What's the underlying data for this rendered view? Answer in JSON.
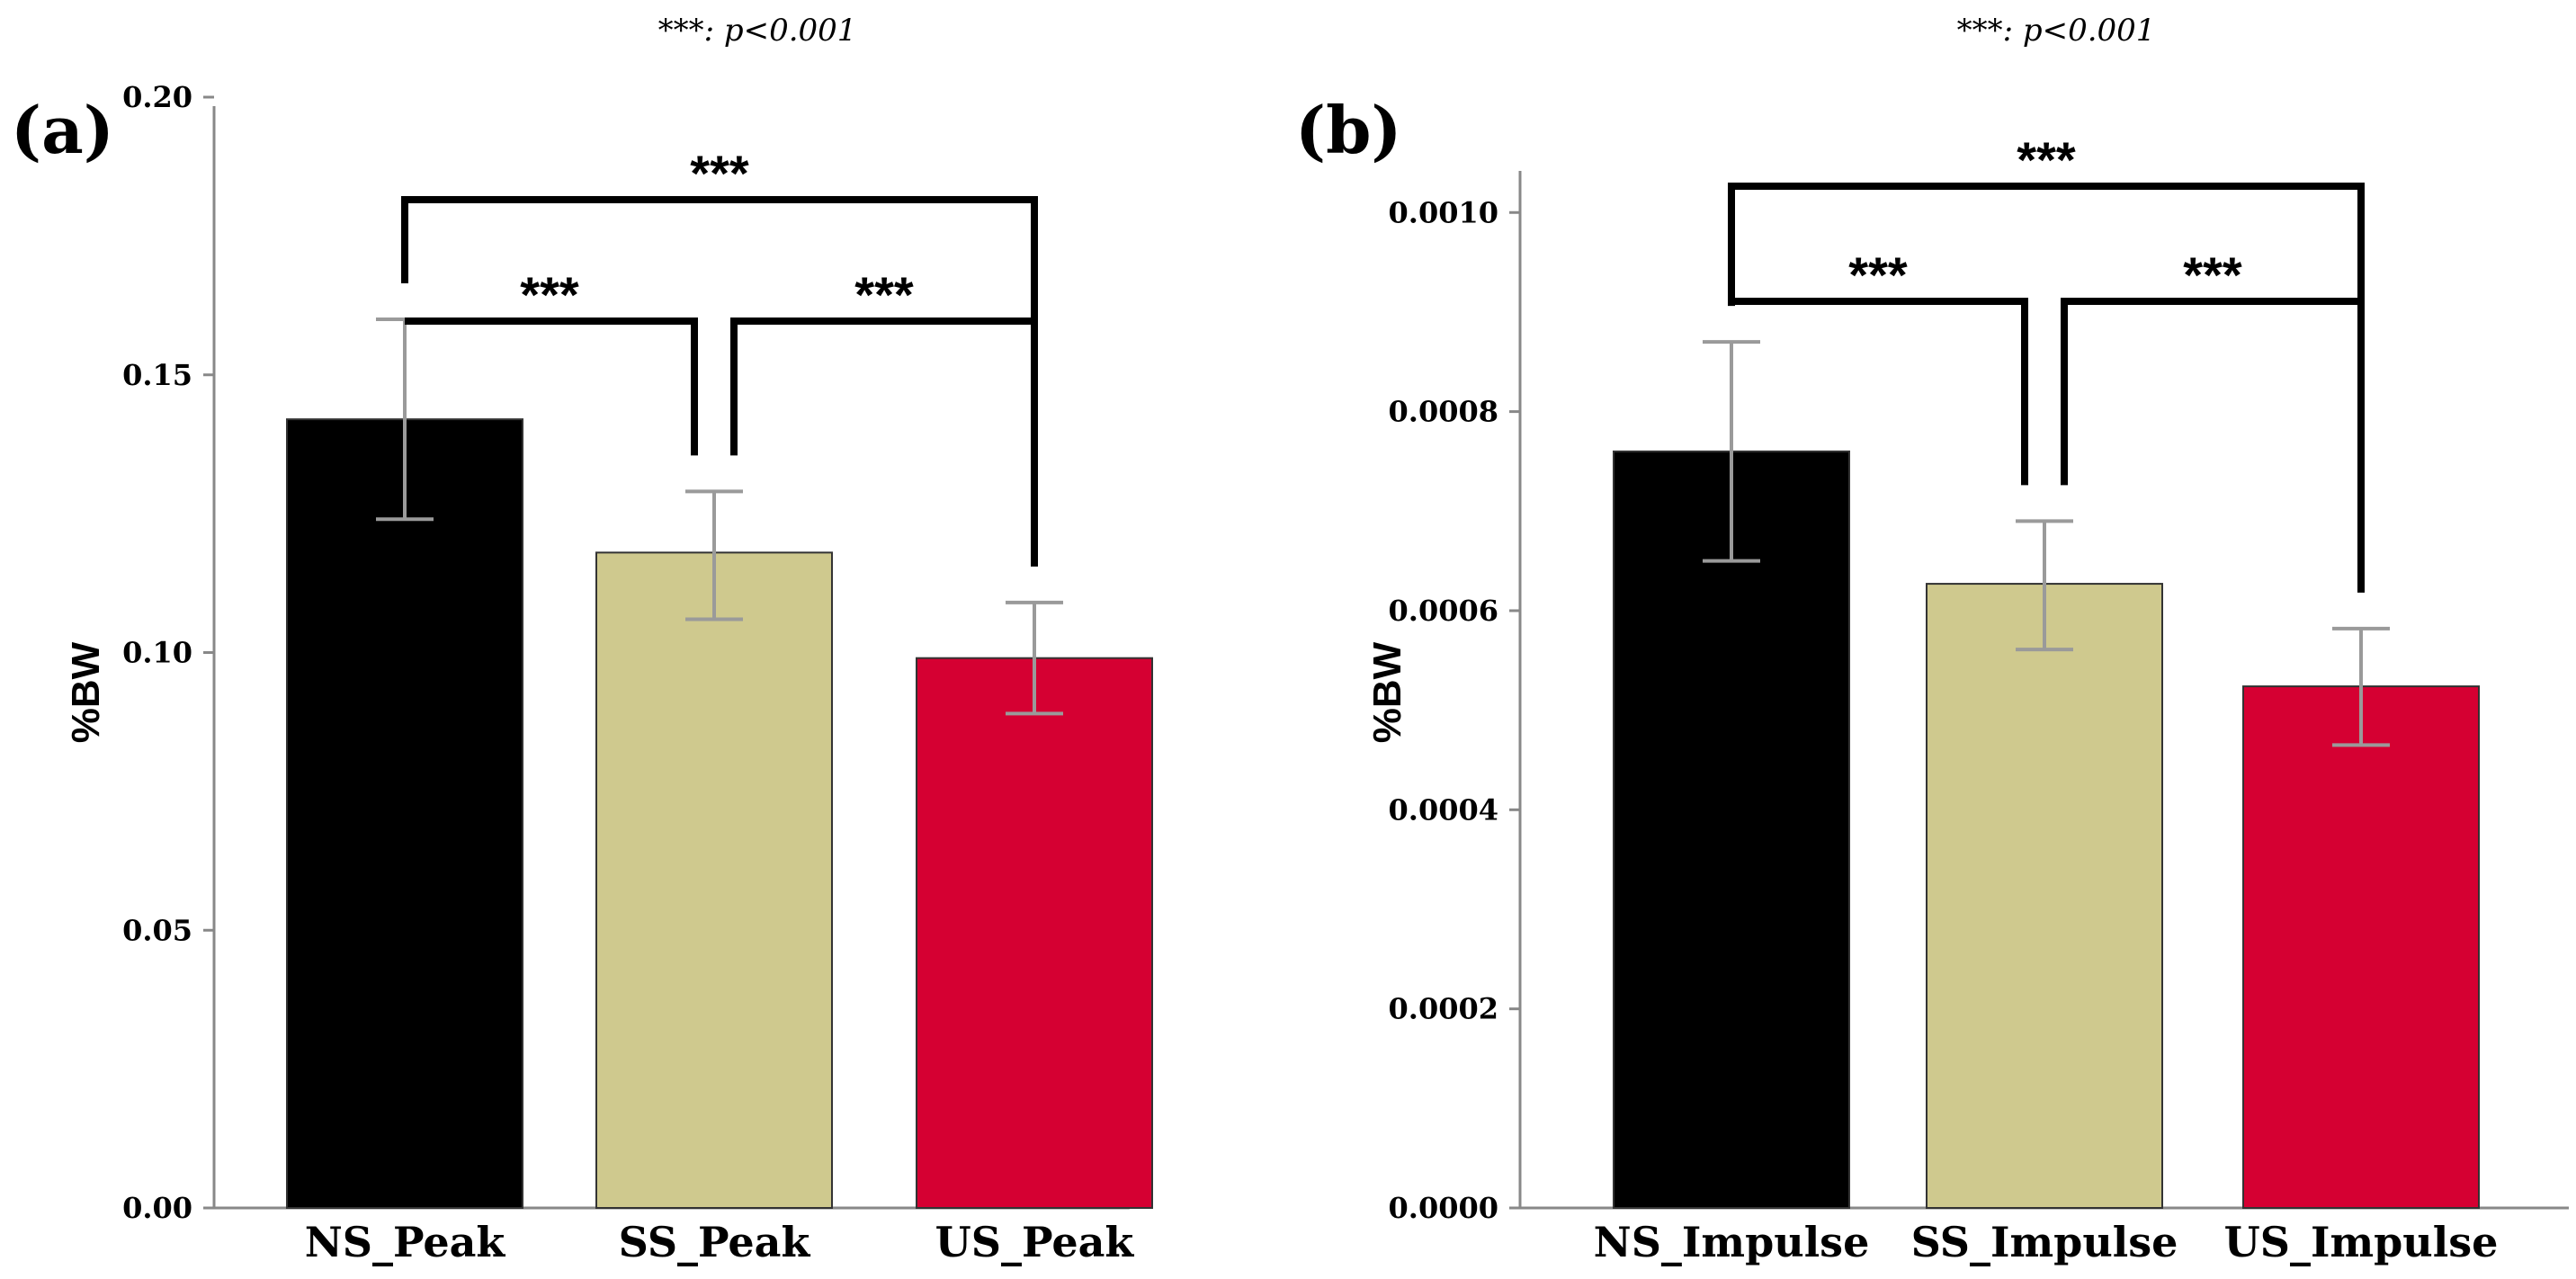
{
  "chart_data": [
    {
      "panel_label": "(a)",
      "type": "bar",
      "note": "***: p<0.001",
      "ylabel": "%BW",
      "categories": [
        "NS_Peak",
        "SS_Peak",
        "US_Peak"
      ],
      "values": [
        0.142,
        0.118,
        0.099
      ],
      "error_low": [
        0.124,
        0.106,
        0.089
      ],
      "error_high": [
        0.16,
        0.129,
        0.109
      ],
      "colors": [
        "#000000",
        "#cfc98e",
        "#d50032"
      ],
      "ylim": [
        0.0,
        0.2
      ],
      "yticks": [
        0.0,
        0.05,
        0.1,
        0.15,
        0.2
      ],
      "ytick_labels": [
        "0.00",
        "0.05",
        "0.10",
        "0.15",
        "0.20"
      ],
      "significance": [
        {
          "from": 0,
          "to": 2,
          "label": "***"
        },
        {
          "from": 0,
          "to": 1,
          "label": "***"
        },
        {
          "from": 1,
          "to": 2,
          "label": "***"
        }
      ]
    },
    {
      "panel_label": "(b)",
      "type": "bar",
      "note": "***: p<0.001",
      "ylabel": "%BW",
      "categories": [
        "NS_Impulse",
        "SS_Impulse",
        "US_Impulse"
      ],
      "values": [
        0.00076,
        0.000627,
        0.000524
      ],
      "error_low": [
        0.00065,
        0.000561,
        0.000465
      ],
      "error_high": [
        0.00087,
        0.00069,
        0.000582
      ],
      "colors": [
        "#000000",
        "#cfc98e",
        "#d50032"
      ],
      "ylim": [
        0.0,
        0.00104
      ],
      "yticks": [
        0.0,
        0.0002,
        0.0004,
        0.0006,
        0.0008,
        0.001
      ],
      "ytick_labels": [
        "0.0000",
        "0.0002",
        "0.0004",
        "0.0006",
        "0.0008",
        "0.0010"
      ],
      "significance": [
        {
          "from": 0,
          "to": 2,
          "label": "***"
        },
        {
          "from": 0,
          "to": 1,
          "label": "***"
        },
        {
          "from": 1,
          "to": 2,
          "label": "***"
        }
      ]
    }
  ]
}
